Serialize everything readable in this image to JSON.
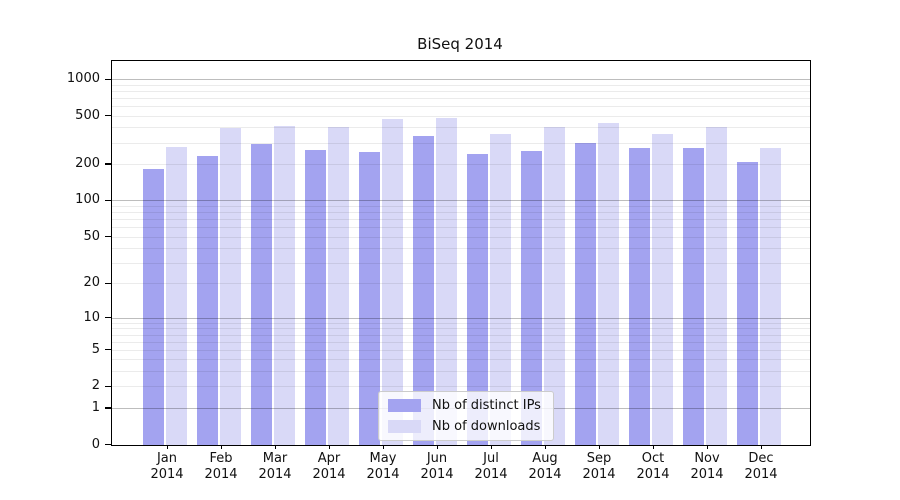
{
  "window": {
    "title": "BiSeq 2014"
  },
  "chart_data": {
    "type": "bar",
    "title": "BiSeq 2014",
    "categories": [
      "Jan",
      "Feb",
      "Mar",
      "Apr",
      "May",
      "Jun",
      "Jul",
      "Aug",
      "Sep",
      "Oct",
      "Nov",
      "Dec"
    ],
    "category_sub_label": "2014",
    "series": [
      {
        "name": "Nb of distinct IPs",
        "color": "#a3a3f0",
        "values": [
          183,
          234,
          292,
          262,
          252,
          340,
          242,
          256,
          296,
          271,
          271,
          209
        ]
      },
      {
        "name": "Nb of downloads",
        "color": "#d9d9f7",
        "values": [
          277,
          398,
          412,
          404,
          470,
          478,
          350,
          404,
          436,
          354,
          400,
          272
        ]
      }
    ],
    "yscale": "log1p",
    "yticks": [
      0,
      1,
      2,
      5,
      10,
      20,
      50,
      100,
      200,
      500,
      1000
    ],
    "minor_grid_bases": [
      2,
      3,
      4,
      5,
      6,
      7,
      8,
      9
    ],
    "minor_grid_decades": [
      1,
      10,
      100
    ],
    "ylim": [
      0,
      1400
    ],
    "xlabel": "",
    "ylabel": "",
    "grid": {
      "horizontal": true,
      "major_color": "#bdbdbd",
      "minor_color": "#ebebeb"
    },
    "legend_position": "inside-bottom-center"
  },
  "colors": {
    "spine": "#000000",
    "text": "#111111",
    "legend_border": "#cccccc",
    "legend_background": "rgba(255,255,255,0.8)"
  }
}
